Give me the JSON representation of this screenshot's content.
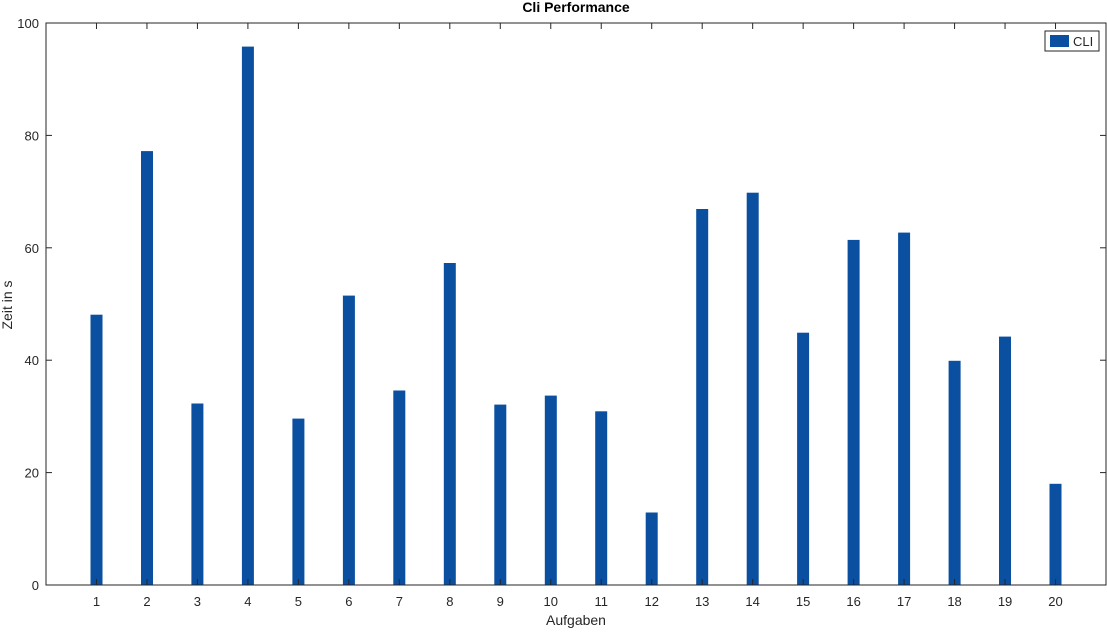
{
  "chart_data": {
    "type": "bar",
    "title": "Cli Performance",
    "xlabel": "Aufgaben",
    "ylabel": "Zeit in s",
    "categories": [
      "1",
      "2",
      "3",
      "4",
      "5",
      "6",
      "7",
      "8",
      "9",
      "10",
      "11",
      "12",
      "13",
      "14",
      "15",
      "16",
      "17",
      "18",
      "19",
      "20"
    ],
    "series": [
      {
        "name": "CLI",
        "color": "#0a4fa0",
        "values": [
          48.1,
          77.2,
          32.3,
          95.8,
          29.6,
          51.5,
          34.6,
          57.3,
          32.1,
          33.7,
          30.9,
          12.9,
          66.9,
          69.8,
          44.9,
          61.4,
          62.7,
          39.9,
          44.2,
          18.0
        ]
      }
    ],
    "ylim": [
      0,
      100
    ],
    "yticks": [
      0,
      20,
      40,
      60,
      80,
      100
    ],
    "grid": false,
    "legend_position": "top-right"
  }
}
